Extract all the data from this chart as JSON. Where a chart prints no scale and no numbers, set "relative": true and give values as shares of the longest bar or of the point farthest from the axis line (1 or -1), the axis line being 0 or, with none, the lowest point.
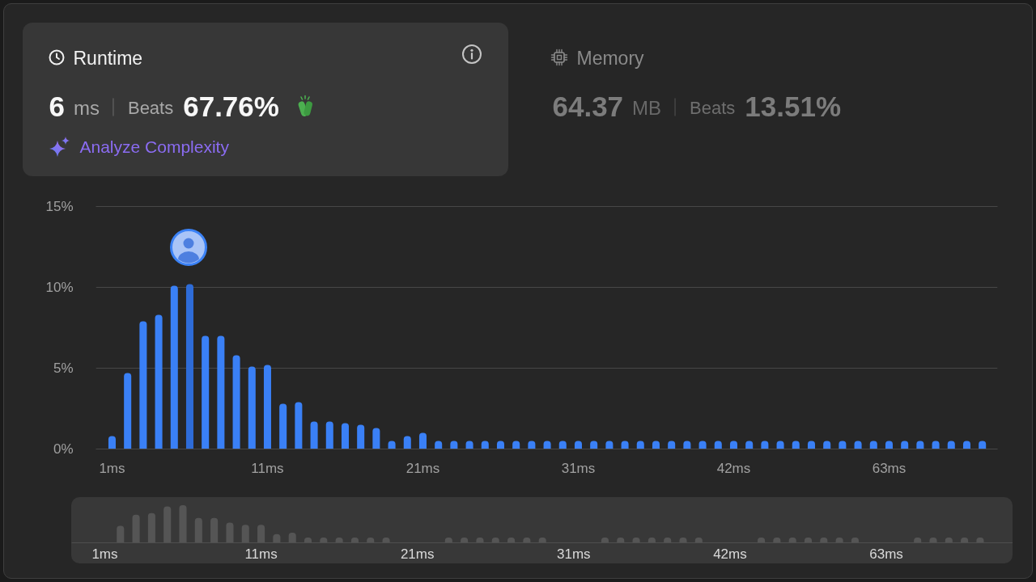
{
  "chart_data": [
    {
      "type": "other",
      "title": "Runtime",
      "annotations": [
        "6",
        "ms",
        "Beats",
        "67.76%",
        "Analyze Complexity"
      ]
    },
    {
      "type": "other",
      "title": "Memory",
      "annotations": [
        "64.37",
        "MB",
        "Beats",
        "13.51%"
      ]
    },
    {
      "type": "bar",
      "categories": [
        "1ms",
        null,
        null,
        null,
        null,
        null,
        null,
        null,
        null,
        null,
        "11ms",
        null,
        null,
        null,
        null,
        null,
        null,
        null,
        null,
        null,
        "21ms",
        null,
        null,
        null,
        null,
        null,
        null,
        null,
        null,
        null,
        "31ms",
        null,
        null,
        null,
        null,
        null,
        null,
        null,
        null,
        null,
        "42ms",
        null,
        null,
        null,
        null,
        null,
        null,
        null,
        null,
        null,
        "63ms",
        null,
        null,
        null,
        null,
        null,
        null
      ],
      "values": [
        0.8,
        4.7,
        7.9,
        8.3,
        10.1,
        10.2,
        7.0,
        7.0,
        5.8,
        5.1,
        5.2,
        2.8,
        2.9,
        1.7,
        1.7,
        1.6,
        1.5,
        1.3,
        0.5,
        0.8,
        1.0,
        0.5,
        0.5,
        0.5,
        0.5,
        0.5,
        0.5,
        0.5,
        0.5,
        0.5,
        0.5,
        0.5,
        0.5,
        0.5,
        0.5,
        0.5,
        0.5,
        0.5,
        0.5,
        0.5,
        0.5,
        0.5,
        0.5,
        0.5,
        0.5,
        0.5,
        0.5,
        0.5,
        0.5,
        0.5,
        0.5,
        0.5,
        0.5,
        0.5,
        0.5,
        0.5,
        0.5
      ],
      "colors": [
        "#3a80f6",
        "#3a80f6",
        "#3a80f6",
        "#3a80f6",
        "#3a80f6",
        "#2e6cd8",
        "#3a80f6",
        "#3a80f6",
        "#3a80f6",
        "#3a80f6",
        "#3a80f6",
        "#3a80f6",
        "#3a80f6",
        "#3a80f6",
        "#3a80f6",
        "#3a80f6",
        "#3a80f6",
        "#3a80f6",
        "#3a80f6",
        "#3a80f6",
        "#3a80f6",
        "#3a80f6",
        "#3a80f6",
        "#3a80f6",
        "#3a80f6",
        "#3a80f6",
        "#3a80f6",
        "#3a80f6",
        "#3a80f6",
        "#3a80f6",
        "#3a80f6",
        "#3a80f6",
        "#3a80f6",
        "#3a80f6",
        "#3a80f6",
        "#3a80f6",
        "#3a80f6",
        "#3a80f6",
        "#3a80f6",
        "#3a80f6",
        "#3a80f6",
        "#3a80f6",
        "#3a80f6",
        "#3a80f6",
        "#3a80f6",
        "#3a80f6",
        "#3a80f6",
        "#3a80f6",
        "#3a80f6",
        "#3a80f6",
        "#3a80f6",
        "#3a80f6",
        "#3a80f6",
        "#3a80f6",
        "#3a80f6",
        "#3a80f6",
        "#3a80f6"
      ],
      "ylim": [
        0,
        15
      ],
      "yticks": [
        {
          "value": 0,
          "label": "0%"
        },
        {
          "value": 5,
          "label": "5%"
        },
        {
          "value": 10,
          "label": "10%"
        },
        {
          "value": 15,
          "label": "15%"
        }
      ],
      "grid": "y"
    },
    {
      "type": "bar",
      "relative": true,
      "categories": [
        "1ms",
        null,
        null,
        null,
        null,
        null,
        null,
        null,
        null,
        null,
        "11ms",
        null,
        null,
        null,
        null,
        null,
        null,
        null,
        null,
        null,
        "21ms",
        null,
        null,
        null,
        null,
        null,
        null,
        null,
        null,
        null,
        "31ms",
        null,
        null,
        null,
        null,
        null,
        null,
        null,
        null,
        null,
        "42ms",
        null,
        null,
        null,
        null,
        null,
        null,
        null,
        null,
        null,
        "63ms",
        null,
        null,
        null,
        null,
        null,
        null
      ],
      "values": [
        null,
        0.45,
        0.75,
        0.79,
        0.97,
        1,
        0.66,
        0.66,
        0.54,
        0.48,
        0.48,
        0.23,
        0.27,
        0.14,
        0.14,
        0.14,
        0.14,
        0.14,
        0.14,
        null,
        null,
        null,
        0.14,
        0.14,
        0.14,
        0.14,
        0.14,
        0.14,
        0.14,
        null,
        null,
        null,
        0.14,
        0.14,
        0.14,
        0.14,
        0.14,
        0.14,
        0.14,
        null,
        null,
        null,
        0.14,
        0.14,
        0.14,
        0.14,
        0.14,
        0.14,
        0.14,
        null,
        null,
        null,
        0.14,
        0.14,
        0.14,
        0.14,
        0.14
      ],
      "color": "#555555"
    }
  ]
}
